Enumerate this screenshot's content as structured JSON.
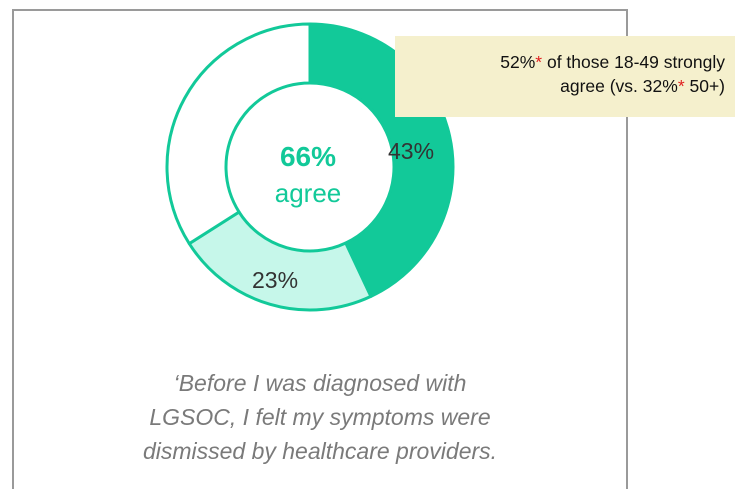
{
  "chart_data": {
    "type": "pie",
    "variant": "donut",
    "center_value": "66%",
    "center_label": "agree",
    "slices": [
      {
        "label": "43%",
        "value": 43,
        "color": "#12c999"
      },
      {
        "label": "23%",
        "value": 23,
        "color": "#c6f7ea"
      },
      {
        "label": "",
        "value": 34,
        "color": "#ffffff"
      }
    ],
    "outline_color": "#12c999"
  },
  "callout": {
    "line1_pre": "52%",
    "line1_star": "*",
    "line1_post": " of those 18-49 strongly",
    "line2_pre": "agree (vs. 32%",
    "line2_star": "*",
    "line2_post": " 50+)"
  },
  "quote": {
    "line1": "‘Before I was diagnosed with",
    "line2": "LGSOC, I felt my symptoms were",
    "line3": "dismissed by healthcare providers."
  }
}
